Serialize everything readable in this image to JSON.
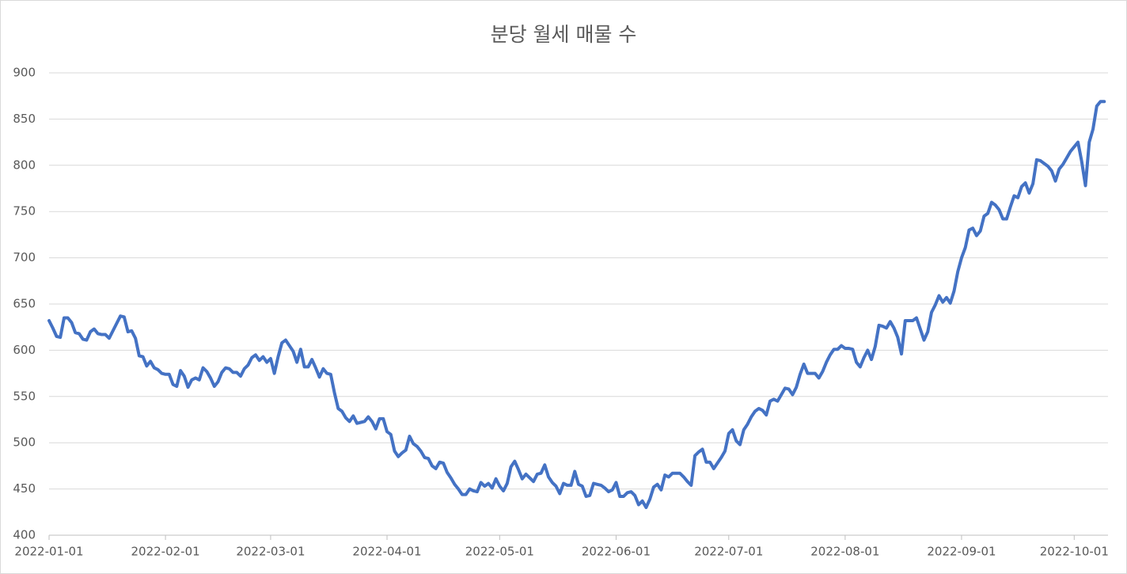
{
  "chart_data": {
    "type": "line",
    "title": "분당 월세 매물 수",
    "x": [
      "2022-01-01",
      "2022-01-02",
      "2022-01-03",
      "2022-01-04",
      "2022-01-05",
      "2022-01-06",
      "2022-01-07",
      "2022-01-08",
      "2022-01-09",
      "2022-01-10",
      "2022-01-11",
      "2022-01-12",
      "2022-01-13",
      "2022-01-14",
      "2022-01-15",
      "2022-01-16",
      "2022-01-17",
      "2022-01-18",
      "2022-01-19",
      "2022-01-20",
      "2022-01-21",
      "2022-01-22",
      "2022-01-23",
      "2022-01-24",
      "2022-01-25",
      "2022-01-26",
      "2022-01-27",
      "2022-01-28",
      "2022-01-29",
      "2022-01-30",
      "2022-01-31",
      "2022-02-01",
      "2022-02-02",
      "2022-02-03",
      "2022-02-04",
      "2022-02-05",
      "2022-02-06",
      "2022-02-07",
      "2022-02-08",
      "2022-02-09",
      "2022-02-10",
      "2022-02-11",
      "2022-02-12",
      "2022-02-13",
      "2022-02-14",
      "2022-02-15",
      "2022-02-16",
      "2022-02-17",
      "2022-02-18",
      "2022-02-19",
      "2022-02-20",
      "2022-02-21",
      "2022-02-22",
      "2022-02-23",
      "2022-02-24",
      "2022-02-25",
      "2022-02-26",
      "2022-02-27",
      "2022-02-28",
      "2022-03-01",
      "2022-03-02",
      "2022-03-03",
      "2022-03-04",
      "2022-03-05",
      "2022-03-06",
      "2022-03-07",
      "2022-03-08",
      "2022-03-09",
      "2022-03-10",
      "2022-03-11",
      "2022-03-12",
      "2022-03-13",
      "2022-03-14",
      "2022-03-15",
      "2022-03-16",
      "2022-03-17",
      "2022-03-18",
      "2022-03-19",
      "2022-03-20",
      "2022-03-21",
      "2022-03-22",
      "2022-03-23",
      "2022-03-24",
      "2022-03-25",
      "2022-03-26",
      "2022-03-27",
      "2022-03-28",
      "2022-03-29",
      "2022-03-30",
      "2022-03-31",
      "2022-04-01",
      "2022-04-02",
      "2022-04-03",
      "2022-04-04",
      "2022-04-05",
      "2022-04-06",
      "2022-04-07",
      "2022-04-08",
      "2022-04-09",
      "2022-04-10",
      "2022-04-11",
      "2022-04-12",
      "2022-04-13",
      "2022-04-14",
      "2022-04-15",
      "2022-04-16",
      "2022-04-17",
      "2022-04-18",
      "2022-04-19",
      "2022-04-20",
      "2022-04-21",
      "2022-04-22",
      "2022-04-23",
      "2022-04-24",
      "2022-04-25",
      "2022-04-26",
      "2022-04-27",
      "2022-04-28",
      "2022-04-29",
      "2022-04-30",
      "2022-05-01",
      "2022-05-02",
      "2022-05-03",
      "2022-05-04",
      "2022-05-05",
      "2022-05-06",
      "2022-05-07",
      "2022-05-08",
      "2022-05-09",
      "2022-05-10",
      "2022-05-11",
      "2022-05-12",
      "2022-05-13",
      "2022-05-14",
      "2022-05-15",
      "2022-05-16",
      "2022-05-17",
      "2022-05-18",
      "2022-05-19",
      "2022-05-20",
      "2022-05-21",
      "2022-05-22",
      "2022-05-23",
      "2022-05-24",
      "2022-05-25",
      "2022-05-26",
      "2022-05-27",
      "2022-05-28",
      "2022-05-29",
      "2022-05-30",
      "2022-05-31",
      "2022-06-01",
      "2022-06-02",
      "2022-06-03",
      "2022-06-04",
      "2022-06-05",
      "2022-06-06",
      "2022-06-07",
      "2022-06-08",
      "2022-06-09",
      "2022-06-10",
      "2022-06-11",
      "2022-06-12",
      "2022-06-13",
      "2022-06-14",
      "2022-06-15",
      "2022-06-16",
      "2022-06-17",
      "2022-06-18",
      "2022-06-19",
      "2022-06-20",
      "2022-06-21",
      "2022-06-22",
      "2022-06-23",
      "2022-06-24",
      "2022-06-25",
      "2022-06-26",
      "2022-06-27",
      "2022-06-28",
      "2022-06-29",
      "2022-06-30",
      "2022-07-01",
      "2022-07-02",
      "2022-07-03",
      "2022-07-04",
      "2022-07-05",
      "2022-07-06",
      "2022-07-07",
      "2022-07-08",
      "2022-07-09",
      "2022-07-10",
      "2022-07-11",
      "2022-07-12",
      "2022-07-13",
      "2022-07-14",
      "2022-07-15",
      "2022-07-16",
      "2022-07-17",
      "2022-07-18",
      "2022-07-19",
      "2022-07-20",
      "2022-07-21",
      "2022-07-22",
      "2022-07-23",
      "2022-07-24",
      "2022-07-25",
      "2022-07-26",
      "2022-07-27",
      "2022-07-28",
      "2022-07-29",
      "2022-07-30",
      "2022-07-31",
      "2022-08-01",
      "2022-08-02",
      "2022-08-03",
      "2022-08-04",
      "2022-08-05",
      "2022-08-06",
      "2022-08-07",
      "2022-08-08",
      "2022-08-09",
      "2022-08-10",
      "2022-08-11",
      "2022-08-12",
      "2022-08-13",
      "2022-08-14",
      "2022-08-15",
      "2022-08-16",
      "2022-08-17",
      "2022-08-18",
      "2022-08-19",
      "2022-08-20",
      "2022-08-21",
      "2022-08-22",
      "2022-08-23",
      "2022-08-24",
      "2022-08-25",
      "2022-08-26",
      "2022-08-27",
      "2022-08-28",
      "2022-08-29",
      "2022-08-30",
      "2022-08-31",
      "2022-09-01",
      "2022-09-02",
      "2022-09-03",
      "2022-09-04",
      "2022-09-05",
      "2022-09-06",
      "2022-09-07",
      "2022-09-08",
      "2022-09-09",
      "2022-09-10",
      "2022-09-11",
      "2022-09-12",
      "2022-09-13",
      "2022-09-14",
      "2022-09-15",
      "2022-09-16",
      "2022-09-17",
      "2022-09-18",
      "2022-09-19",
      "2022-09-20",
      "2022-09-21",
      "2022-09-22",
      "2022-09-23",
      "2022-09-24",
      "2022-09-25",
      "2022-09-26",
      "2022-09-27",
      "2022-09-28",
      "2022-09-29",
      "2022-09-30",
      "2022-10-01",
      "2022-10-02",
      "2022-10-03",
      "2022-10-04",
      "2022-10-05",
      "2022-10-06",
      "2022-10-07",
      "2022-10-08",
      "2022-10-09"
    ],
    "values": [
      632,
      624,
      615,
      614,
      635,
      635,
      630,
      619,
      618,
      612,
      611,
      620,
      623,
      618,
      617,
      617,
      613,
      621,
      629,
      637,
      636,
      620,
      621,
      613,
      594,
      593,
      583,
      588,
      581,
      579,
      575,
      574,
      574,
      563,
      561,
      578,
      572,
      560,
      568,
      570,
      568,
      581,
      577,
      570,
      561,
      566,
      576,
      581,
      580,
      576,
      576,
      572,
      580,
      584,
      592,
      595,
      589,
      593,
      587,
      591,
      575,
      593,
      608,
      611,
      605,
      599,
      587,
      601,
      582,
      582,
      590,
      581,
      571,
      580,
      575,
      574,
      554,
      537,
      534,
      527,
      523,
      529,
      521,
      522,
      523,
      528,
      523,
      515,
      526,
      526,
      512,
      509,
      491,
      485,
      489,
      492,
      507,
      499,
      496,
      491,
      484,
      483,
      475,
      472,
      479,
      478,
      468,
      462,
      455,
      450,
      444,
      444,
      450,
      448,
      447,
      457,
      453,
      456,
      451,
      461,
      453,
      448,
      456,
      474,
      480,
      471,
      461,
      466,
      462,
      458,
      466,
      467,
      476,
      463,
      457,
      453,
      445,
      456,
      454,
      454,
      469,
      455,
      453,
      442,
      443,
      456,
      455,
      454,
      451,
      447,
      449,
      457,
      442,
      442,
      446,
      447,
      443,
      433,
      437,
      430,
      439,
      452,
      455,
      449,
      465,
      463,
      467,
      467,
      467,
      463,
      458,
      454,
      486,
      490,
      493,
      479,
      479,
      472,
      478,
      484,
      491,
      510,
      514,
      502,
      498,
      514,
      520,
      528,
      534,
      537,
      535,
      530,
      545,
      547,
      545,
      552,
      559,
      558,
      552,
      560,
      574,
      585,
      575,
      575,
      575,
      570,
      577,
      587,
      595,
      601,
      601,
      605,
      602,
      602,
      601,
      587,
      582,
      592,
      600,
      590,
      604,
      627,
      626,
      624,
      631,
      624,
      614,
      596,
      632,
      632,
      632,
      635,
      623,
      611,
      620,
      641,
      649,
      659,
      652,
      657,
      651,
      664,
      685,
      700,
      711,
      730,
      732,
      724,
      729,
      745,
      748,
      760,
      757,
      752,
      742,
      742,
      755,
      767,
      765,
      777,
      781,
      770,
      780,
      806,
      805,
      802,
      799,
      794,
      783,
      796,
      801,
      808,
      815,
      820,
      825,
      804,
      778,
      825,
      839,
      864,
      869,
      869
    ],
    "color": "#4472c4",
    "xlim": [
      "2022-01-01",
      "2022-10-10"
    ],
    "xticks": [
      "2022-01-01",
      "2022-02-01",
      "2022-03-01",
      "2022-04-01",
      "2022-05-01",
      "2022-06-01",
      "2022-07-01",
      "2022-08-01",
      "2022-09-01",
      "2022-10-01"
    ],
    "ylim": [
      400,
      900
    ],
    "yticks": [
      400,
      450,
      500,
      550,
      600,
      650,
      700,
      750,
      800,
      850,
      900
    ],
    "grid": true
  }
}
